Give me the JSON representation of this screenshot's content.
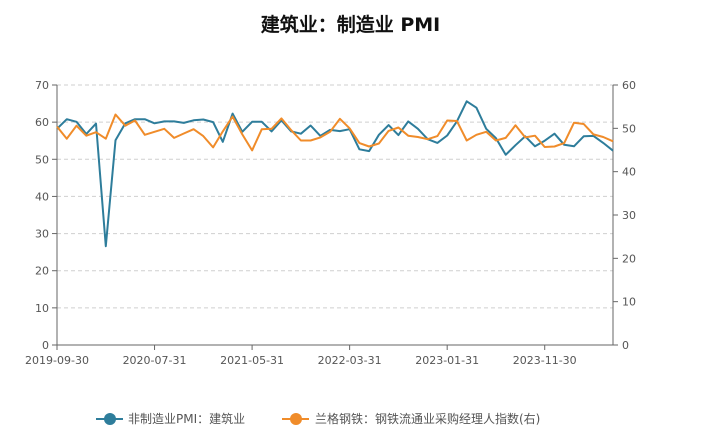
{
  "chart_data": {
    "type": "line",
    "title": "建筑业：制造业 PMI",
    "x_tick_labels": [
      "2019-09-30",
      "2020-07-31",
      "2021-05-31",
      "2022-03-31",
      "2023-01-31",
      "2023-11-30"
    ],
    "x_tick_months": [
      "2019-09",
      "2020-07",
      "2021-05",
      "2022-03",
      "2023-01",
      "2023-11"
    ],
    "x_start": "2019-09",
    "x_end": "2024-06",
    "left_axis": {
      "ylim": [
        0,
        70
      ],
      "ticks": [
        "0",
        "10",
        "20",
        "30",
        "40",
        "50",
        "60",
        "70"
      ]
    },
    "right_axis": {
      "ylim": [
        0,
        60
      ],
      "ticks": [
        "0",
        "10",
        "20",
        "30",
        "40",
        "50",
        "60"
      ]
    },
    "legend_position": "bottom",
    "grid": "horizontal dashed",
    "series": [
      {
        "name": "非制造业PMI：建筑业",
        "axis": "left",
        "color": "#2e7d9b",
        "x": [
          "2019-09",
          "2019-10",
          "2019-11",
          "2019-12",
          "2020-01",
          "2020-02",
          "2020-03",
          "2020-04",
          "2020-05",
          "2020-06",
          "2020-07",
          "2020-08",
          "2020-09",
          "2020-10",
          "2020-11",
          "2020-12",
          "2021-01",
          "2021-02",
          "2021-03",
          "2021-04",
          "2021-05",
          "2021-06",
          "2021-07",
          "2021-08",
          "2021-09",
          "2021-10",
          "2021-11",
          "2021-12",
          "2022-01",
          "2022-02",
          "2022-03",
          "2022-04",
          "2022-05",
          "2022-06",
          "2022-07",
          "2022-08",
          "2022-09",
          "2022-10",
          "2022-11",
          "2022-12",
          "2023-01",
          "2023-02",
          "2023-03",
          "2023-04",
          "2023-05",
          "2023-06",
          "2023-07",
          "2023-08",
          "2023-09",
          "2023-10",
          "2023-11",
          "2023-12",
          "2024-01",
          "2024-02",
          "2024-03",
          "2024-04",
          "2024-05",
          "2024-06"
        ],
        "values": [
          58.2,
          60.8,
          60.1,
          56.8,
          59.6,
          26.6,
          55.1,
          59.7,
          60.8,
          60.8,
          59.7,
          60.2,
          60.2,
          59.8,
          60.5,
          60.7,
          60.0,
          54.7,
          62.3,
          57.4,
          60.1,
          60.1,
          57.5,
          60.5,
          57.5,
          56.9,
          59.1,
          56.3,
          57.9,
          57.6,
          58.1,
          52.7,
          52.2,
          56.6,
          59.2,
          56.5,
          60.2,
          58.2,
          55.4,
          54.4,
          56.4,
          60.2,
          65.6,
          63.9,
          58.2,
          55.7,
          51.2,
          53.8,
          56.2,
          53.5,
          55.0,
          56.9,
          53.9,
          53.5,
          56.2,
          56.3,
          54.4,
          52.3
        ]
      },
      {
        "name": "兰格钢铁：钢铁流通业采购经理人指数(右)",
        "axis": "right",
        "color": "#f08c2a",
        "x": [
          "2019-09",
          "2019-10",
          "2019-11",
          "2019-12",
          "2020-01",
          "2020-02",
          "2020-03",
          "2020-04",
          "2020-05",
          "2020-06",
          "2020-07",
          "2020-08",
          "2020-09",
          "2020-10",
          "2020-11",
          "2020-12",
          "2021-01",
          "2021-02",
          "2021-03",
          "2021-04",
          "2021-05",
          "2021-06",
          "2021-07",
          "2021-08",
          "2021-09",
          "2021-10",
          "2021-11",
          "2021-12",
          "2022-01",
          "2022-02",
          "2022-03",
          "2022-04",
          "2022-05",
          "2022-06",
          "2022-07",
          "2022-08",
          "2022-09",
          "2022-10",
          "2022-11",
          "2022-12",
          "2023-01",
          "2023-02",
          "2023-03",
          "2023-04",
          "2023-05",
          "2023-06",
          "2023-07",
          "2023-08",
          "2023-09",
          "2023-10",
          "2023-11",
          "2023-12",
          "2024-01",
          "2024-02",
          "2024-03",
          "2024-04",
          "2024-05",
          "2024-06"
        ],
        "values": [
          50.4,
          47.6,
          50.6,
          48.3,
          49.1,
          47.6,
          53.2,
          50.6,
          51.8,
          48.5,
          49.2,
          49.9,
          47.8,
          48.8,
          49.8,
          48.2,
          45.6,
          49.3,
          52.7,
          48.6,
          44.9,
          49.8,
          49.9,
          52.3,
          49.6,
          47.2,
          47.2,
          47.9,
          49.2,
          52.2,
          50.0,
          46.6,
          45.8,
          46.5,
          49.4,
          50.2,
          48.3,
          48.0,
          47.5,
          48.2,
          51.8,
          51.7,
          47.2,
          48.5,
          49.2,
          47.2,
          47.8,
          50.7,
          47.9,
          48.3,
          45.7,
          45.8,
          46.6,
          51.3,
          51.0,
          48.6,
          48.0,
          47.0
        ]
      }
    ]
  }
}
